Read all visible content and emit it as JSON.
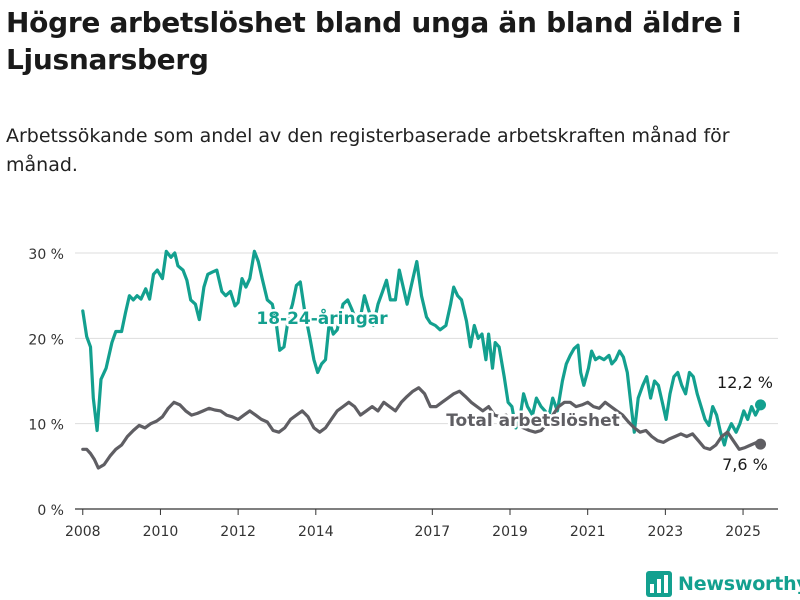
{
  "header": {
    "title": "Högre arbetslöshet bland unga än bland äldre i Ljusnarsberg",
    "subtitle": "Arbetssökande som andel av den registerbaserade arbetskraften månad för månad."
  },
  "brand": {
    "name": "Newsworthy",
    "icon": "bar-chart-logo-icon",
    "color": "#13a08f"
  },
  "chart_data": {
    "type": "line",
    "x_unit": "year (fractional, monthly)",
    "ylim": [
      0,
      30
    ],
    "yticks": [
      0,
      10,
      20,
      30
    ],
    "ytick_labels": [
      "0 %",
      "10 %",
      "20 %",
      "30 %"
    ],
    "xticks": [
      2008,
      2010,
      2012,
      2014,
      2017,
      2019,
      2021,
      2023,
      2025
    ],
    "xtick_labels": [
      "2008",
      "2010",
      "2012",
      "2014",
      "2017",
      "2019",
      "2021",
      "2023",
      "2025"
    ],
    "grid": "horizontal",
    "legend": "none (inline labels)",
    "series": [
      {
        "name": "18-24-åringar",
        "color": "#13a08f",
        "end_label": "12,2 %",
        "points": [
          [
            2008.0,
            23.2
          ],
          [
            2008.1,
            20.2
          ],
          [
            2008.2,
            19.0
          ],
          [
            2008.27,
            13.0
          ],
          [
            2008.37,
            9.2
          ],
          [
            2008.47,
            15.2
          ],
          [
            2008.6,
            16.5
          ],
          [
            2008.75,
            19.5
          ],
          [
            2008.85,
            20.8
          ],
          [
            2009.0,
            20.8
          ],
          [
            2009.1,
            23.0
          ],
          [
            2009.2,
            25.0
          ],
          [
            2009.3,
            24.5
          ],
          [
            2009.4,
            25.0
          ],
          [
            2009.5,
            24.6
          ],
          [
            2009.62,
            25.8
          ],
          [
            2009.72,
            24.6
          ],
          [
            2009.82,
            27.5
          ],
          [
            2009.92,
            28.0
          ],
          [
            2010.05,
            27.0
          ],
          [
            2010.15,
            30.2
          ],
          [
            2010.27,
            29.5
          ],
          [
            2010.37,
            30.0
          ],
          [
            2010.45,
            28.5
          ],
          [
            2010.58,
            28.0
          ],
          [
            2010.68,
            26.8
          ],
          [
            2010.78,
            24.5
          ],
          [
            2010.9,
            24.0
          ],
          [
            2011.0,
            22.2
          ],
          [
            2011.12,
            26.0
          ],
          [
            2011.22,
            27.5
          ],
          [
            2011.35,
            27.8
          ],
          [
            2011.45,
            28.0
          ],
          [
            2011.58,
            25.5
          ],
          [
            2011.68,
            25.0
          ],
          [
            2011.8,
            25.5
          ],
          [
            2011.92,
            23.8
          ],
          [
            2012.0,
            24.2
          ],
          [
            2012.1,
            27.0
          ],
          [
            2012.2,
            26.0
          ],
          [
            2012.3,
            27.0
          ],
          [
            2012.42,
            30.2
          ],
          [
            2012.52,
            29.0
          ],
          [
            2012.62,
            27.0
          ],
          [
            2012.75,
            24.5
          ],
          [
            2012.88,
            24.0
          ],
          [
            2012.98,
            21.8
          ],
          [
            2013.07,
            18.6
          ],
          [
            2013.18,
            19.0
          ],
          [
            2013.3,
            22.5
          ],
          [
            2013.4,
            24.0
          ],
          [
            2013.5,
            26.2
          ],
          [
            2013.6,
            26.6
          ],
          [
            2013.72,
            23.0
          ],
          [
            2013.85,
            20.0
          ],
          [
            2013.95,
            17.5
          ],
          [
            2014.05,
            16.0
          ],
          [
            2014.15,
            17.0
          ],
          [
            2014.25,
            17.5
          ],
          [
            2014.35,
            22.0
          ],
          [
            2014.45,
            20.5
          ],
          [
            2014.55,
            21.0
          ],
          [
            2014.7,
            24.0
          ],
          [
            2014.82,
            24.5
          ],
          [
            2014.92,
            23.5
          ],
          [
            2015.05,
            22.0
          ],
          [
            2015.15,
            22.5
          ],
          [
            2015.25,
            25.0
          ],
          [
            2015.35,
            23.5
          ],
          [
            2015.48,
            21.5
          ],
          [
            2015.6,
            24.0
          ],
          [
            2015.72,
            25.5
          ],
          [
            2015.82,
            26.8
          ],
          [
            2015.92,
            24.5
          ],
          [
            2016.05,
            24.5
          ],
          [
            2016.15,
            28.0
          ],
          [
            2016.25,
            26.0
          ],
          [
            2016.35,
            24.0
          ],
          [
            2016.5,
            27.0
          ],
          [
            2016.6,
            29.0
          ],
          [
            2016.72,
            25.0
          ],
          [
            2016.85,
            22.5
          ],
          [
            2016.95,
            21.8
          ],
          [
            2017.08,
            21.5
          ],
          [
            2017.2,
            21.0
          ],
          [
            2017.35,
            21.5
          ],
          [
            2017.47,
            24.0
          ],
          [
            2017.55,
            26.0
          ],
          [
            2017.65,
            25.0
          ],
          [
            2017.75,
            24.5
          ],
          [
            2017.88,
            22.0
          ],
          [
            2017.98,
            19.0
          ],
          [
            2018.08,
            21.5
          ],
          [
            2018.18,
            20.0
          ],
          [
            2018.28,
            20.5
          ],
          [
            2018.38,
            17.5
          ],
          [
            2018.45,
            20.5
          ],
          [
            2018.55,
            16.5
          ],
          [
            2018.62,
            19.5
          ],
          [
            2018.72,
            19.0
          ],
          [
            2018.85,
            15.5
          ],
          [
            2018.95,
            12.5
          ],
          [
            2019.05,
            12.0
          ],
          [
            2019.15,
            9.5
          ],
          [
            2019.25,
            10.5
          ],
          [
            2019.35,
            13.5
          ],
          [
            2019.45,
            12.0
          ],
          [
            2019.58,
            11.0
          ],
          [
            2019.68,
            13.0
          ],
          [
            2019.8,
            12.0
          ],
          [
            2019.9,
            11.5
          ],
          [
            2020.0,
            10.8
          ],
          [
            2020.1,
            13.0
          ],
          [
            2020.22,
            11.5
          ],
          [
            2020.35,
            15.0
          ],
          [
            2020.45,
            17.0
          ],
          [
            2020.55,
            18.0
          ],
          [
            2020.65,
            18.8
          ],
          [
            2020.75,
            19.2
          ],
          [
            2020.82,
            16.0
          ],
          [
            2020.9,
            14.5
          ],
          [
            2021.02,
            16.5
          ],
          [
            2021.1,
            18.5
          ],
          [
            2021.2,
            17.5
          ],
          [
            2021.3,
            17.8
          ],
          [
            2021.42,
            17.5
          ],
          [
            2021.55,
            18.0
          ],
          [
            2021.62,
            17.0
          ],
          [
            2021.72,
            17.5
          ],
          [
            2021.82,
            18.5
          ],
          [
            2021.92,
            17.8
          ],
          [
            2022.02,
            16.0
          ],
          [
            2022.12,
            12.0
          ],
          [
            2022.2,
            9.0
          ],
          [
            2022.3,
            13.0
          ],
          [
            2022.42,
            14.5
          ],
          [
            2022.52,
            15.5
          ],
          [
            2022.62,
            13.0
          ],
          [
            2022.72,
            15.0
          ],
          [
            2022.82,
            14.5
          ],
          [
            2022.92,
            12.5
          ],
          [
            2023.02,
            10.5
          ],
          [
            2023.12,
            13.5
          ],
          [
            2023.22,
            15.5
          ],
          [
            2023.32,
            16.0
          ],
          [
            2023.42,
            14.5
          ],
          [
            2023.52,
            13.5
          ],
          [
            2023.62,
            16.0
          ],
          [
            2023.72,
            15.5
          ],
          [
            2023.82,
            13.5
          ],
          [
            2023.92,
            12.0
          ],
          [
            2024.02,
            10.5
          ],
          [
            2024.12,
            9.8
          ],
          [
            2024.22,
            12.0
          ],
          [
            2024.32,
            11.0
          ],
          [
            2024.42,
            9.0
          ],
          [
            2024.52,
            7.5
          ],
          [
            2024.6,
            9.0
          ],
          [
            2024.7,
            10.0
          ],
          [
            2024.82,
            9.0
          ],
          [
            2024.92,
            10.0
          ],
          [
            2025.02,
            11.5
          ],
          [
            2025.12,
            10.5
          ],
          [
            2025.22,
            12.0
          ],
          [
            2025.32,
            11.0
          ],
          [
            2025.45,
            12.2
          ]
        ]
      },
      {
        "name": "Total arbetslöshet",
        "color": "#5f5e63",
        "end_label": "7,6 %",
        "points": [
          [
            2008.0,
            7.0
          ],
          [
            2008.1,
            7.0
          ],
          [
            2008.2,
            6.5
          ],
          [
            2008.3,
            5.8
          ],
          [
            2008.4,
            4.8
          ],
          [
            2008.55,
            5.2
          ],
          [
            2008.7,
            6.2
          ],
          [
            2008.85,
            7.0
          ],
          [
            2009.0,
            7.5
          ],
          [
            2009.15,
            8.5
          ],
          [
            2009.3,
            9.2
          ],
          [
            2009.45,
            9.8
          ],
          [
            2009.6,
            9.5
          ],
          [
            2009.75,
            10.0
          ],
          [
            2009.9,
            10.3
          ],
          [
            2010.05,
            10.8
          ],
          [
            2010.2,
            11.8
          ],
          [
            2010.35,
            12.5
          ],
          [
            2010.5,
            12.2
          ],
          [
            2010.65,
            11.5
          ],
          [
            2010.8,
            11.0
          ],
          [
            2010.95,
            11.2
          ],
          [
            2011.1,
            11.5
          ],
          [
            2011.25,
            11.8
          ],
          [
            2011.4,
            11.6
          ],
          [
            2011.55,
            11.5
          ],
          [
            2011.7,
            11.0
          ],
          [
            2011.85,
            10.8
          ],
          [
            2012.0,
            10.5
          ],
          [
            2012.15,
            11.0
          ],
          [
            2012.3,
            11.5
          ],
          [
            2012.45,
            11.0
          ],
          [
            2012.6,
            10.5
          ],
          [
            2012.75,
            10.2
          ],
          [
            2012.9,
            9.2
          ],
          [
            2013.05,
            9.0
          ],
          [
            2013.2,
            9.5
          ],
          [
            2013.35,
            10.5
          ],
          [
            2013.5,
            11.0
          ],
          [
            2013.65,
            11.5
          ],
          [
            2013.8,
            10.8
          ],
          [
            2013.95,
            9.5
          ],
          [
            2014.1,
            9.0
          ],
          [
            2014.25,
            9.5
          ],
          [
            2014.4,
            10.5
          ],
          [
            2014.55,
            11.5
          ],
          [
            2014.7,
            12.0
          ],
          [
            2014.85,
            12.5
          ],
          [
            2015.0,
            12.0
          ],
          [
            2015.15,
            11.0
          ],
          [
            2015.3,
            11.5
          ],
          [
            2015.45,
            12.0
          ],
          [
            2015.6,
            11.5
          ],
          [
            2015.75,
            12.5
          ],
          [
            2015.9,
            12.0
          ],
          [
            2016.05,
            11.5
          ],
          [
            2016.2,
            12.5
          ],
          [
            2016.35,
            13.2
          ],
          [
            2016.5,
            13.8
          ],
          [
            2016.65,
            14.2
          ],
          [
            2016.8,
            13.5
          ],
          [
            2016.95,
            12.0
          ],
          [
            2017.1,
            12.0
          ],
          [
            2017.25,
            12.5
          ],
          [
            2017.4,
            13.0
          ],
          [
            2017.55,
            13.5
          ],
          [
            2017.7,
            13.8
          ],
          [
            2017.85,
            13.2
          ],
          [
            2018.0,
            12.5
          ],
          [
            2018.15,
            12.0
          ],
          [
            2018.3,
            11.5
          ],
          [
            2018.45,
            12.0
          ],
          [
            2018.6,
            11.0
          ],
          [
            2018.75,
            10.8
          ],
          [
            2018.9,
            11.0
          ],
          [
            2019.05,
            10.0
          ],
          [
            2019.2,
            9.8
          ],
          [
            2019.35,
            9.5
          ],
          [
            2019.5,
            9.2
          ],
          [
            2019.65,
            9.0
          ],
          [
            2019.8,
            9.2
          ],
          [
            2019.95,
            10.0
          ],
          [
            2020.1,
            11.0
          ],
          [
            2020.25,
            12.0
          ],
          [
            2020.4,
            12.5
          ],
          [
            2020.55,
            12.5
          ],
          [
            2020.7,
            12.0
          ],
          [
            2020.85,
            12.2
          ],
          [
            2021.0,
            12.5
          ],
          [
            2021.15,
            12.0
          ],
          [
            2021.3,
            11.8
          ],
          [
            2021.45,
            12.5
          ],
          [
            2021.6,
            12.0
          ],
          [
            2021.75,
            11.5
          ],
          [
            2021.9,
            11.0
          ],
          [
            2022.05,
            10.2
          ],
          [
            2022.2,
            9.5
          ],
          [
            2022.35,
            9.0
          ],
          [
            2022.5,
            9.2
          ],
          [
            2022.65,
            8.5
          ],
          [
            2022.8,
            8.0
          ],
          [
            2022.95,
            7.8
          ],
          [
            2023.1,
            8.2
          ],
          [
            2023.25,
            8.5
          ],
          [
            2023.4,
            8.8
          ],
          [
            2023.55,
            8.5
          ],
          [
            2023.7,
            8.8
          ],
          [
            2023.85,
            8.0
          ],
          [
            2024.0,
            7.2
          ],
          [
            2024.15,
            7.0
          ],
          [
            2024.3,
            7.5
          ],
          [
            2024.45,
            8.5
          ],
          [
            2024.6,
            9.0
          ],
          [
            2024.75,
            8.0
          ],
          [
            2024.9,
            7.0
          ],
          [
            2025.05,
            7.2
          ],
          [
            2025.2,
            7.5
          ],
          [
            2025.35,
            7.8
          ],
          [
            2025.45,
            7.6
          ]
        ]
      }
    ]
  }
}
